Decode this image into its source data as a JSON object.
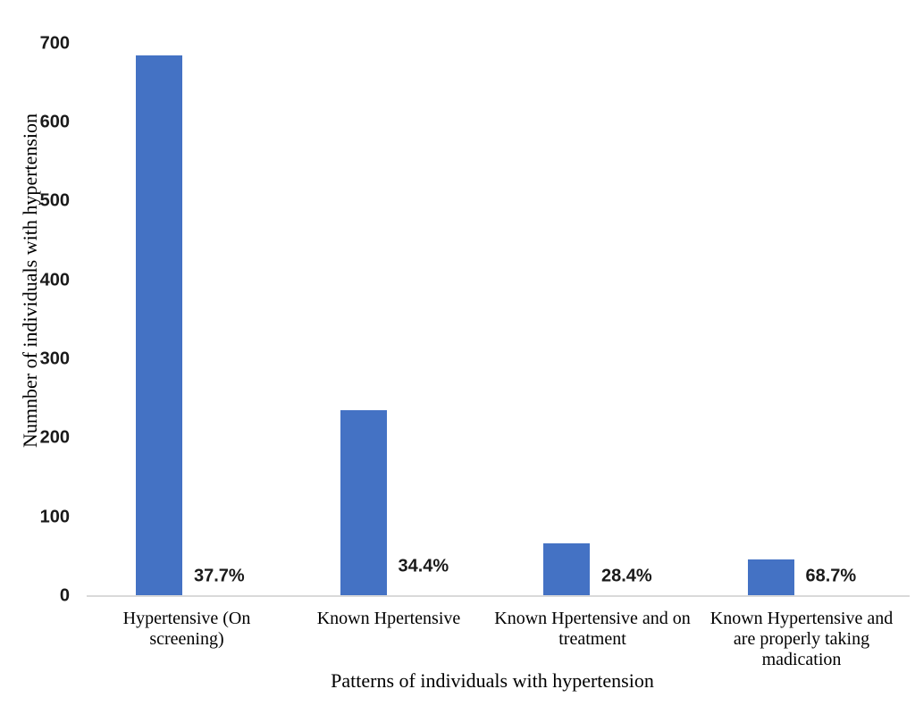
{
  "chart_data": {
    "type": "bar",
    "title": "",
    "categories": [
      "Hypertensive (On screening)",
      "Known Hpertensive",
      "Known Hpertensive and on treatment",
      "Known Hypertensive and are properly taking madication"
    ],
    "values": [
      685,
      236,
      67,
      46
    ],
    "data_labels": [
      "37.7%",
      "34.4%",
      "28.4%",
      "68.7%"
    ],
    "xlabel": "Patterns of individuals with hypertension",
    "ylabel": "Numnber of individuals with hypertension",
    "ylim": [
      0,
      700
    ],
    "yticks": [
      0,
      100,
      200,
      300,
      400,
      500,
      600,
      700
    ],
    "grid": false,
    "legend": false,
    "bar_color": "#4472C4",
    "axis_line_color": "#D9D9D9",
    "label_color": "#1a1a1a"
  }
}
